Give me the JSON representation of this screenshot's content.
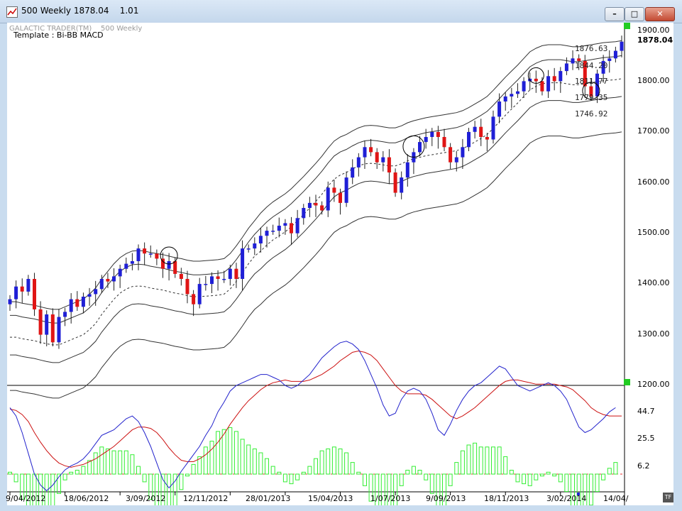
{
  "window": {
    "title": "500 Weekly 1878.04",
    "zoom": "1.01",
    "buttons": {
      "minimize": "–",
      "maximize": "□",
      "close": "✕"
    }
  },
  "chart": {
    "watermark": "GALACTIC TRADER(TM)",
    "watermark_sub": "500 Weekly",
    "template": "Template : Bi-BB MACD",
    "last_price": "1878.04",
    "y_labels": [
      "1900.00",
      "1800.00",
      "1700.00",
      "1600.00",
      "1500.00",
      "1400.00",
      "1300.00",
      "1200.00"
    ],
    "band_levels": [
      "1876.63",
      "1844.20",
      "1811.77",
      "1779.35",
      "1746.92"
    ],
    "macd_labels": [
      "44.7",
      "25.5",
      "6.2"
    ],
    "x_labels": [
      "9/04/2012",
      "18/06/2012",
      "3/09/2012",
      "12/11/2012",
      "28/01/2013",
      "15/04/2013",
      "1/07/2013",
      "9/09/2013",
      "18/11/2013",
      "3/02/2014",
      "14/04/"
    ],
    "tf_label": "TF",
    "colors": {
      "up": "#1f1fd6",
      "down": "#e01515",
      "hist": "#33ee33",
      "macd": "#2222cc",
      "signal": "#cc1111"
    }
  },
  "chart_data": [
    {
      "type": "candlestick",
      "title": "500 Weekly",
      "ylim": [
        1200,
        1920
      ],
      "y_ticks": [
        1200,
        1300,
        1400,
        1500,
        1600,
        1700,
        1800,
        1900
      ],
      "x_ticks": [
        "9/04/2012",
        "18/06/2012",
        "3/09/2012",
        "12/11/2012",
        "28/01/2013",
        "15/04/2013",
        "1/07/2013",
        "9/09/2013",
        "18/11/2013",
        "3/02/2014",
        "14/04/"
      ],
      "series": [
        {
          "name": "close",
          "values": [
            1370,
            1395,
            1385,
            1410,
            1350,
            1300,
            1340,
            1285,
            1335,
            1345,
            1370,
            1355,
            1375,
            1380,
            1390,
            1410,
            1405,
            1415,
            1430,
            1440,
            1445,
            1470,
            1460,
            1460,
            1450,
            1430,
            1445,
            1420,
            1410,
            1380,
            1360,
            1400,
            1400,
            1415,
            1410,
            1410,
            1430,
            1410,
            1470,
            1470,
            1480,
            1495,
            1505,
            1505,
            1515,
            1520,
            1500,
            1530,
            1550,
            1560,
            1555,
            1545,
            1590,
            1580,
            1560,
            1610,
            1630,
            1650,
            1670,
            1660,
            1640,
            1650,
            1620,
            1580,
            1610,
            1640,
            1660,
            1680,
            1690,
            1700,
            1690,
            1670,
            1640,
            1650,
            1670,
            1700,
            1710,
            1690,
            1685,
            1730,
            1760,
            1770,
            1775,
            1780,
            1800,
            1805,
            1800,
            1780,
            1810,
            1800,
            1820,
            1835,
            1845,
            1840,
            1790,
            1770,
            1815,
            1840,
            1845,
            1860,
            1878
          ]
        },
        {
          "name": "upper band",
          "values": [
            1365,
            1365,
            1362,
            1360,
            1358,
            1355,
            1352,
            1350,
            1350,
            1355,
            1360,
            1365,
            1370,
            1380,
            1392,
            1410,
            1425,
            1440,
            1452,
            1460,
            1465,
            1466,
            1465,
            1462,
            1460,
            1458,
            1455,
            1452,
            1450,
            1447,
            1445,
            1445,
            1446,
            1447,
            1448,
            1450,
            1460,
            1475,
            1492,
            1510,
            1525,
            1540,
            1552,
            1562,
            1570,
            1578,
            1588,
            1600,
            1612,
            1625,
            1638,
            1652,
            1668,
            1682,
            1690,
            1695,
            1702,
            1708,
            1712,
            1713,
            1712,
            1710,
            1708,
            1708,
            1712,
            1718,
            1722,
            1725,
            1728,
            1730,
            1732,
            1734,
            1736,
            1738,
            1742,
            1748,
            1755,
            1762,
            1770,
            1782,
            1795,
            1808,
            1820,
            1832,
            1845,
            1858,
            1865,
            1870,
            1872,
            1872,
            1872,
            1870,
            1868,
            1868,
            1870,
            1872,
            1874,
            1876,
            1877,
            1878,
            1880
          ]
        }
      ]
    },
    {
      "type": "line",
      "title": "MACD",
      "y_ticks": [
        6.2,
        25.5,
        44.7
      ],
      "series": [
        {
          "name": "macd",
          "values": [
            48,
            42,
            30,
            15,
            0,
            -8,
            -12,
            -8,
            -2,
            3,
            6,
            8,
            11,
            16,
            22,
            28,
            30,
            32,
            36,
            40,
            42,
            38,
            30,
            20,
            8,
            -4,
            -10,
            -5,
            2,
            8,
            14,
            20,
            28,
            35,
            45,
            52,
            60,
            64,
            66,
            68,
            70,
            72,
            72,
            70,
            68,
            64,
            62,
            64,
            68,
            72,
            78,
            84,
            88,
            92,
            95,
            96,
            94,
            90,
            82,
            72,
            62,
            50,
            42,
            44,
            54,
            60,
            62,
            60,
            54,
            44,
            32,
            28,
            36,
            46,
            54,
            60,
            64,
            66,
            70,
            74,
            78,
            76,
            70,
            64,
            62,
            60,
            62,
            64,
            66,
            64,
            60,
            54,
            44,
            34,
            30,
            32,
            36,
            40,
            45,
            48
          ]
        },
        {
          "name": "signal",
          "values": [
            47,
            46,
            43,
            38,
            30,
            23,
            17,
            12,
            8,
            6,
            5,
            6,
            7,
            9,
            11,
            14,
            17,
            20,
            24,
            28,
            32,
            34,
            34,
            33,
            30,
            25,
            19,
            14,
            10,
            9,
            9,
            11,
            14,
            18,
            23,
            29,
            36,
            42,
            48,
            53,
            57,
            61,
            64,
            66,
            67,
            68,
            67,
            67,
            67,
            68,
            70,
            72,
            75,
            78,
            82,
            85,
            88,
            89,
            88,
            86,
            82,
            76,
            70,
            64,
            60,
            58,
            58,
            58,
            57,
            54,
            50,
            46,
            42,
            40,
            42,
            45,
            48,
            52,
            56,
            60,
            64,
            67,
            68,
            68,
            67,
            66,
            65,
            65,
            65,
            65,
            64,
            63,
            61,
            57,
            53,
            48,
            45,
            43,
            42,
            42,
            42
          ]
        }
      ]
    }
  ]
}
